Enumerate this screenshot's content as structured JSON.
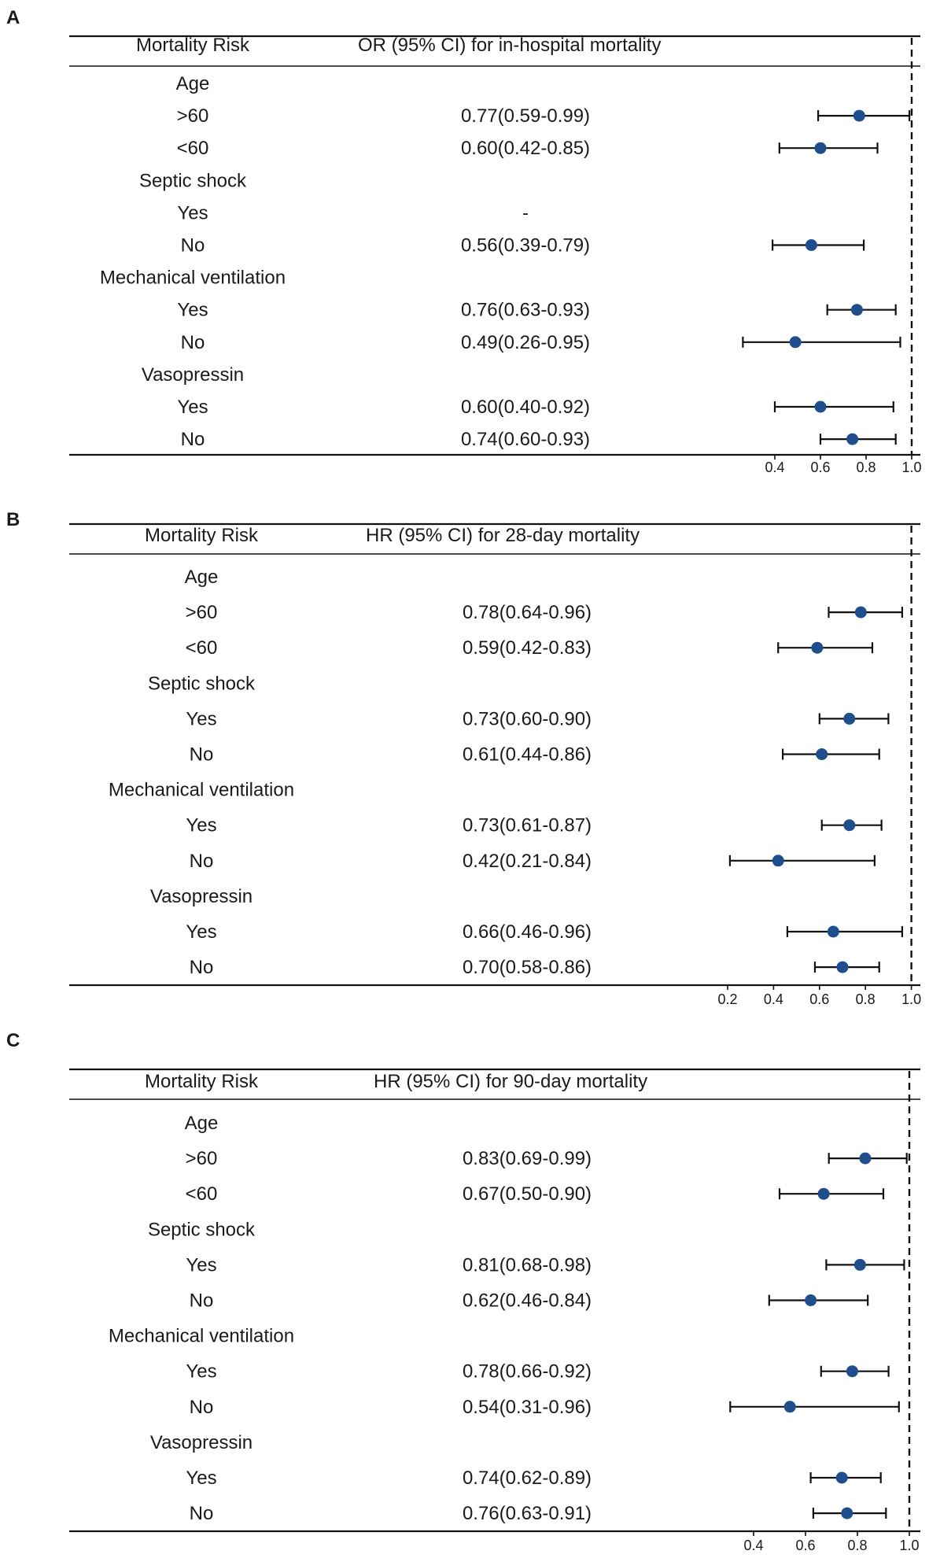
{
  "figure": {
    "chart_data": [
      {
        "panel": "A",
        "type": "forest",
        "header": {
          "col1": "Mortality Risk",
          "col2": "OR (95% CI) for in-hospital mortality"
        },
        "xticks": [
          "0.4",
          "0.6",
          "0.8",
          "1.0"
        ],
        "reference_line": 1.0,
        "rows": [
          {
            "label": "Age",
            "kind": "group"
          },
          {
            "label": ">60",
            "kind": "item",
            "text": "0.77(0.59-0.99)",
            "est": 0.77,
            "lo": 0.59,
            "hi": 0.99
          },
          {
            "label": "<60",
            "kind": "item",
            "text": "0.60(0.42-0.85)",
            "est": 0.6,
            "lo": 0.42,
            "hi": 0.85
          },
          {
            "label": "Septic shock",
            "kind": "group"
          },
          {
            "label": "Yes",
            "kind": "item",
            "text": "-",
            "est": null,
            "lo": null,
            "hi": null
          },
          {
            "label": "No",
            "kind": "item",
            "text": "0.56(0.39-0.79)",
            "est": 0.56,
            "lo": 0.39,
            "hi": 0.79
          },
          {
            "label": "Mechanical ventilation",
            "kind": "group"
          },
          {
            "label": "Yes",
            "kind": "item",
            "text": "0.76(0.63-0.93)",
            "est": 0.76,
            "lo": 0.63,
            "hi": 0.93
          },
          {
            "label": "No",
            "kind": "item",
            "text": "0.49(0.26-0.95)",
            "est": 0.49,
            "lo": 0.26,
            "hi": 0.95
          },
          {
            "label": "Vasopressin",
            "kind": "group"
          },
          {
            "label": "Yes",
            "kind": "item",
            "text": "0.60(0.40-0.92)",
            "est": 0.6,
            "lo": 0.4,
            "hi": 0.92
          },
          {
            "label": "No",
            "kind": "item",
            "text": "0.74(0.60-0.93)",
            "est": 0.74,
            "lo": 0.6,
            "hi": 0.93
          }
        ]
      },
      {
        "panel": "B",
        "type": "forest",
        "header": {
          "col1": "Mortality Risk",
          "col2": "HR (95% CI) for 28-day mortality"
        },
        "xticks": [
          "0.2",
          "0.4",
          "0.6",
          "0.8",
          "1.0"
        ],
        "reference_line": 1.0,
        "rows": [
          {
            "label": "Age",
            "kind": "group"
          },
          {
            "label": ">60",
            "kind": "item",
            "text": "0.78(0.64-0.96)",
            "est": 0.78,
            "lo": 0.64,
            "hi": 0.96
          },
          {
            "label": "<60",
            "kind": "item",
            "text": "0.59(0.42-0.83)",
            "est": 0.59,
            "lo": 0.42,
            "hi": 0.83
          },
          {
            "label": "Septic shock",
            "kind": "group"
          },
          {
            "label": "Yes",
            "kind": "item",
            "text": "0.73(0.60-0.90)",
            "est": 0.73,
            "lo": 0.6,
            "hi": 0.9
          },
          {
            "label": "No",
            "kind": "item",
            "text": "0.61(0.44-0.86)",
            "est": 0.61,
            "lo": 0.44,
            "hi": 0.86
          },
          {
            "label": "Mechanical ventilation",
            "kind": "group"
          },
          {
            "label": "Yes",
            "kind": "item",
            "text": "0.73(0.61-0.87)",
            "est": 0.73,
            "lo": 0.61,
            "hi": 0.87
          },
          {
            "label": "No",
            "kind": "item",
            "text": "0.42(0.21-0.84)",
            "est": 0.42,
            "lo": 0.21,
            "hi": 0.84
          },
          {
            "label": "Vasopressin",
            "kind": "group"
          },
          {
            "label": "Yes",
            "kind": "item",
            "text": "0.66(0.46-0.96)",
            "est": 0.66,
            "lo": 0.46,
            "hi": 0.96
          },
          {
            "label": "No",
            "kind": "item",
            "text": "0.70(0.58-0.86)",
            "est": 0.7,
            "lo": 0.58,
            "hi": 0.86
          }
        ]
      },
      {
        "panel": "C",
        "type": "forest",
        "header": {
          "col1": "Mortality Risk",
          "col2": "HR (95% CI) for 90-day mortality"
        },
        "xticks": [
          "0.4",
          "0.6",
          "0.8",
          "1.0"
        ],
        "reference_line": 1.0,
        "rows": [
          {
            "label": "Age",
            "kind": "group"
          },
          {
            "label": ">60",
            "kind": "item",
            "text": "0.83(0.69-0.99)",
            "est": 0.83,
            "lo": 0.69,
            "hi": 0.99
          },
          {
            "label": "<60",
            "kind": "item",
            "text": "0.67(0.50-0.90)",
            "est": 0.67,
            "lo": 0.5,
            "hi": 0.9
          },
          {
            "label": "Septic shock",
            "kind": "group"
          },
          {
            "label": "Yes",
            "kind": "item",
            "text": "0.81(0.68-0.98)",
            "est": 0.81,
            "lo": 0.68,
            "hi": 0.98
          },
          {
            "label": "No",
            "kind": "item",
            "text": "0.62(0.46-0.84)",
            "est": 0.62,
            "lo": 0.46,
            "hi": 0.84
          },
          {
            "label": "Mechanical ventilation",
            "kind": "group"
          },
          {
            "label": "Yes",
            "kind": "item",
            "text": "0.78(0.66-0.92)",
            "est": 0.78,
            "lo": 0.66,
            "hi": 0.92
          },
          {
            "label": "No",
            "kind": "item",
            "text": "0.54(0.31-0.96)",
            "est": 0.54,
            "lo": 0.31,
            "hi": 0.96
          },
          {
            "label": "Vasopressin",
            "kind": "group"
          },
          {
            "label": "Yes",
            "kind": "item",
            "text": "0.74(0.62-0.89)",
            "est": 0.74,
            "lo": 0.62,
            "hi": 0.89
          },
          {
            "label": "No",
            "kind": "item",
            "text": "0.76(0.63-0.91)",
            "est": 0.76,
            "lo": 0.63,
            "hi": 0.91
          }
        ]
      }
    ]
  },
  "colors": {
    "point": "#1f4e8c",
    "line": "#111111",
    "text": "#1a1a1a"
  }
}
